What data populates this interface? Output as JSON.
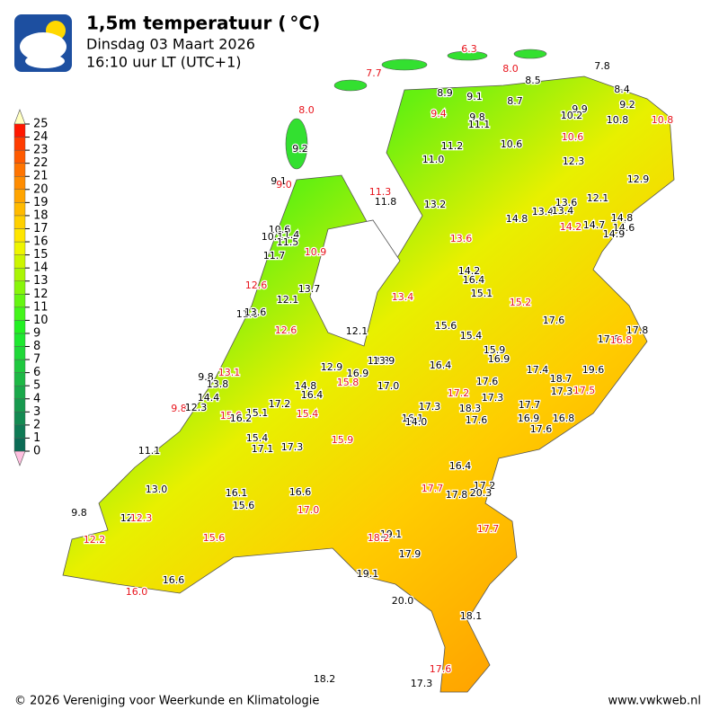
{
  "header": {
    "title": "1,5m temperatuur ( °C)",
    "date": "Dinsdag 03 Maart 2026",
    "time": "16:10 uur LT (UTC+1)"
  },
  "scale": {
    "labels": [
      0,
      1,
      2,
      3,
      4,
      5,
      6,
      7,
      8,
      9,
      10,
      11,
      12,
      13,
      14,
      15,
      16,
      17,
      18,
      19,
      20,
      21,
      22,
      23,
      24,
      25
    ],
    "colors": [
      "#0b6b55",
      "#0f7a55",
      "#138a52",
      "#17994e",
      "#1aa84a",
      "#1db845",
      "#1fc83f",
      "#20d838",
      "#1ee830",
      "#22f022",
      "#44f51a",
      "#66f512",
      "#88f50a",
      "#aaf505",
      "#ccf500",
      "#eef500",
      "#ffe600",
      "#ffd000",
      "#ffba00",
      "#ffa400",
      "#ff8c00",
      "#ff7400",
      "#ff5a00",
      "#ff3c00",
      "#ff1800"
    ]
  },
  "stations": [
    {
      "label": "6.3",
      "color": "red"
    },
    {
      "label": "7.7",
      "color": "red"
    },
    {
      "label": "8.0",
      "color": "red"
    },
    {
      "label": "7.8",
      "color": "black"
    },
    {
      "label": "8.5",
      "color": "black"
    },
    {
      "label": "8.0",
      "color": "red"
    },
    {
      "label": "8.9",
      "color": "black"
    },
    {
      "label": "9.1",
      "color": "black"
    },
    {
      "label": "8.7",
      "color": "black"
    },
    {
      "label": "8.4",
      "color": "black"
    },
    {
      "label": "9.2",
      "color": "black"
    },
    {
      "label": "9.9",
      "color": "black"
    },
    {
      "label": "9.4",
      "color": "red"
    },
    {
      "label": "9.8",
      "color": "black"
    },
    {
      "label": "11.1",
      "color": "black"
    },
    {
      "label": "10.2",
      "color": "black"
    },
    {
      "label": "10.8",
      "color": "black"
    },
    {
      "label": "10.8",
      "color": "red"
    },
    {
      "label": "9.2",
      "color": "black"
    },
    {
      "label": "10.6",
      "color": "red"
    },
    {
      "label": "10.6",
      "color": "black"
    },
    {
      "label": "11.2",
      "color": "black"
    },
    {
      "label": "11.0",
      "color": "black"
    },
    {
      "label": "12.3",
      "color": "black"
    },
    {
      "label": "12.9",
      "color": "black"
    },
    {
      "label": "9.1",
      "color": "black"
    },
    {
      "label": "9.0",
      "color": "red"
    },
    {
      "label": "11.3",
      "color": "red"
    },
    {
      "label": "11.8",
      "color": "black"
    },
    {
      "label": "13.2",
      "color": "black"
    },
    {
      "label": "13.6",
      "color": "black"
    },
    {
      "label": "12.1",
      "color": "black"
    },
    {
      "label": "13.4",
      "color": "black"
    },
    {
      "label": "13.4",
      "color": "black"
    },
    {
      "label": "14.8",
      "color": "black"
    },
    {
      "label": "14.8",
      "color": "black"
    },
    {
      "label": "14.2",
      "color": "red"
    },
    {
      "label": "14.7",
      "color": "black"
    },
    {
      "label": "14.6",
      "color": "black"
    },
    {
      "label": "14.9",
      "color": "black"
    },
    {
      "label": "10.6",
      "color": "black"
    },
    {
      "label": "11.4",
      "color": "black"
    },
    {
      "label": "10.1",
      "color": "black"
    },
    {
      "label": "11.5",
      "color": "black"
    },
    {
      "label": "13.6",
      "color": "red"
    },
    {
      "label": "11.7",
      "color": "black"
    },
    {
      "label": "10.9",
      "color": "red"
    },
    {
      "label": "14.2",
      "color": "black"
    },
    {
      "label": "16.4",
      "color": "black"
    },
    {
      "label": "12.6",
      "color": "red"
    },
    {
      "label": "13.7",
      "color": "black"
    },
    {
      "label": "15.1",
      "color": "black"
    },
    {
      "label": "12.1",
      "color": "black"
    },
    {
      "label": "13.4",
      "color": "red"
    },
    {
      "label": "15.2",
      "color": "red"
    },
    {
      "label": "11.6",
      "color": "black"
    },
    {
      "label": "13.6",
      "color": "black"
    },
    {
      "label": "17.6",
      "color": "black"
    },
    {
      "label": "15.6",
      "color": "black"
    },
    {
      "label": "12.6",
      "color": "red"
    },
    {
      "label": "12.1",
      "color": "black"
    },
    {
      "label": "15.4",
      "color": "black"
    },
    {
      "label": "17.8",
      "color": "black"
    },
    {
      "label": "17.6",
      "color": "black"
    },
    {
      "label": "16.8",
      "color": "red"
    },
    {
      "label": "15.9",
      "color": "black"
    },
    {
      "label": "16.9",
      "color": "black"
    },
    {
      "label": "13.3",
      "color": "black"
    },
    {
      "label": "13.9",
      "color": "black"
    },
    {
      "label": "16.4",
      "color": "black"
    },
    {
      "label": "12.9",
      "color": "black"
    },
    {
      "label": "16.9",
      "color": "black"
    },
    {
      "label": "17.4",
      "color": "black"
    },
    {
      "label": "19.6",
      "color": "black"
    },
    {
      "label": "9.8",
      "color": "black"
    },
    {
      "label": "13.1",
      "color": "red"
    },
    {
      "label": "18.7",
      "color": "black"
    },
    {
      "label": "13.8",
      "color": "black"
    },
    {
      "label": "15.8",
      "color": "red"
    },
    {
      "label": "17.0",
      "color": "black"
    },
    {
      "label": "14.8",
      "color": "black"
    },
    {
      "label": "17.6",
      "color": "black"
    },
    {
      "label": "16.4",
      "color": "black"
    },
    {
      "label": "17.2",
      "color": "red"
    },
    {
      "label": "17.3",
      "color": "black"
    },
    {
      "label": "17.5",
      "color": "red"
    },
    {
      "label": "14.4",
      "color": "black"
    },
    {
      "label": "17.3",
      "color": "black"
    },
    {
      "label": "17.7",
      "color": "black"
    },
    {
      "label": "9.8",
      "color": "red"
    },
    {
      "label": "12.3",
      "color": "black"
    },
    {
      "label": "17.2",
      "color": "black"
    },
    {
      "label": "17.3",
      "color": "black"
    },
    {
      "label": "18.3",
      "color": "black"
    },
    {
      "label": "15.4",
      "color": "red"
    },
    {
      "label": "15.0",
      "color": "red"
    },
    {
      "label": "15.1",
      "color": "black"
    },
    {
      "label": "16.2",
      "color": "black"
    },
    {
      "label": "16.1",
      "color": "black"
    },
    {
      "label": "14.0",
      "color": "black"
    },
    {
      "label": "16.9",
      "color": "black"
    },
    {
      "label": "16.8",
      "color": "black"
    },
    {
      "label": "17.6",
      "color": "black"
    },
    {
      "label": "17.6",
      "color": "black"
    },
    {
      "label": "15.4",
      "color": "black"
    },
    {
      "label": "15.9",
      "color": "red"
    },
    {
      "label": "17.1",
      "color": "black"
    },
    {
      "label": "17.3",
      "color": "black"
    },
    {
      "label": "11.1",
      "color": "black"
    },
    {
      "label": "16.4",
      "color": "black"
    },
    {
      "label": "13.0",
      "color": "black"
    },
    {
      "label": "17.2",
      "color": "black"
    },
    {
      "label": "16.1",
      "color": "black"
    },
    {
      "label": "16.6",
      "color": "black"
    },
    {
      "label": "17.7",
      "color": "red"
    },
    {
      "label": "17.8",
      "color": "black"
    },
    {
      "label": "20.3",
      "color": "black"
    },
    {
      "label": "15.6",
      "color": "black"
    },
    {
      "label": "17.0",
      "color": "red"
    },
    {
      "label": "9.8",
      "color": "black"
    },
    {
      "label": "12.1",
      "color": "black"
    },
    {
      "label": "12.3",
      "color": "red"
    },
    {
      "label": "17.7",
      "color": "red"
    },
    {
      "label": "19.1",
      "color": "black"
    },
    {
      "label": "18.2",
      "color": "red"
    },
    {
      "label": "15.6",
      "color": "red"
    },
    {
      "label": "12.2",
      "color": "red"
    },
    {
      "label": "17.9",
      "color": "black"
    },
    {
      "label": "19.1",
      "color": "black"
    },
    {
      "label": "16.6",
      "color": "black"
    },
    {
      "label": "16.0",
      "color": "red"
    },
    {
      "label": "20.0",
      "color": "black"
    },
    {
      "label": "18.1",
      "color": "black"
    },
    {
      "label": "17.6",
      "color": "red"
    },
    {
      "label": "18.2",
      "color": "black"
    },
    {
      "label": "17.3",
      "color": "black"
    }
  ],
  "footer": {
    "copyright": "© 2026 Vereniging voor Weerkunde en Klimatologie",
    "site": "www.vwkweb.nl"
  }
}
